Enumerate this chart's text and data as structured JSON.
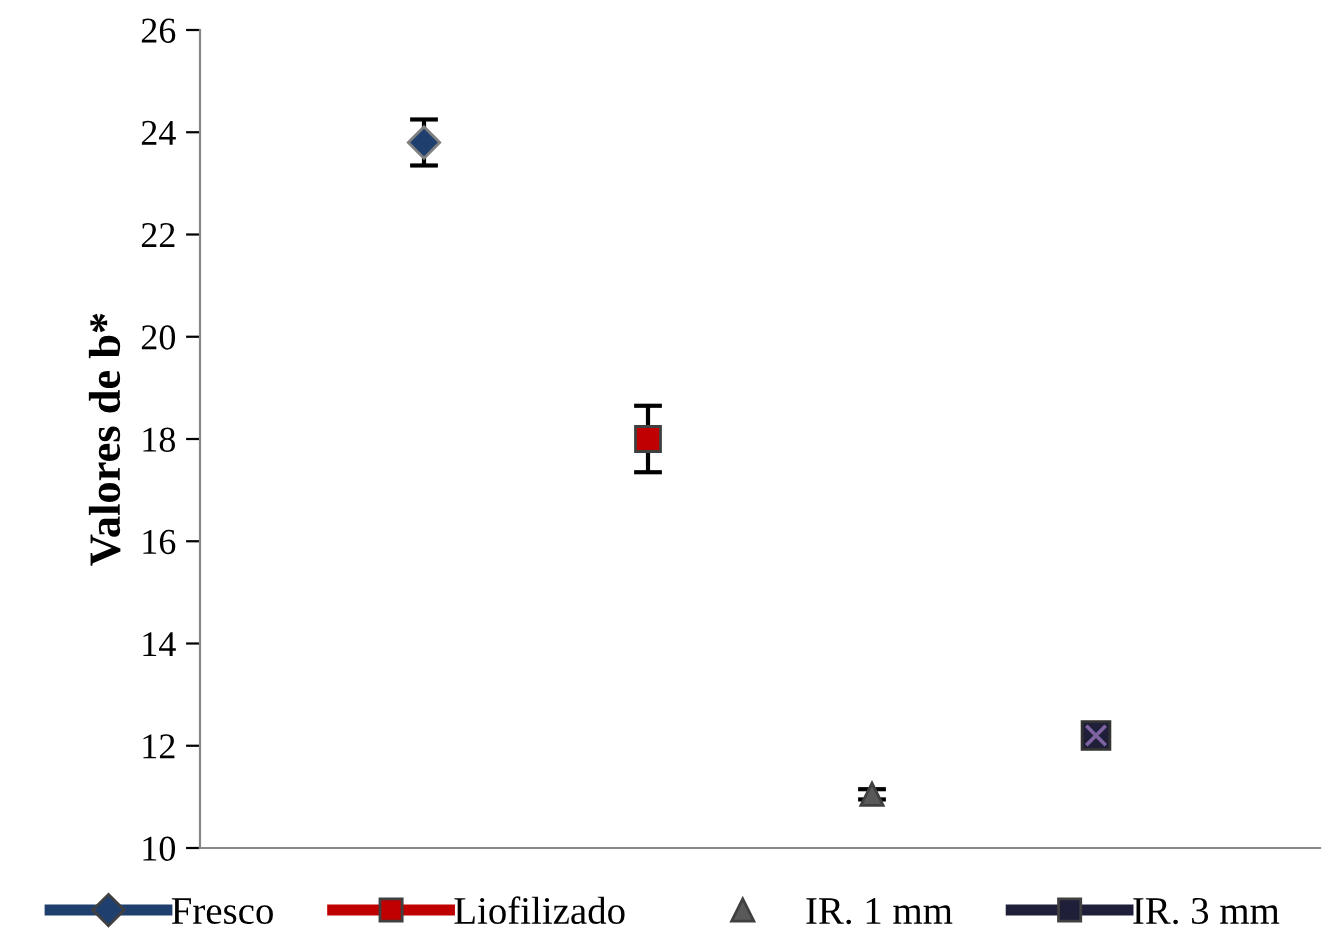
{
  "chart_data": {
    "type": "scatter",
    "ylabel": "Valores de b*",
    "categories": [
      null,
      null,
      null,
      null
    ],
    "series": [
      {
        "name": "Fresco",
        "color": "#1f3f6e",
        "marker": "diamond",
        "values": [
          23.8,
          null,
          null,
          null
        ],
        "errors": [
          0.45,
          null,
          null,
          null
        ]
      },
      {
        "name": "Liofilizado",
        "color": "#c00000",
        "marker": "square",
        "values": [
          null,
          18.0,
          null,
          null
        ],
        "errors": [
          null,
          0.65,
          null,
          null
        ]
      },
      {
        "name": "IR. 1 mm",
        "color": "#595959",
        "marker": "triangle",
        "values": [
          null,
          null,
          11.05,
          null
        ],
        "errors": [
          null,
          null,
          0.1,
          null
        ]
      },
      {
        "name": "IR. 3 mm",
        "color": "#1f1f3a",
        "marker": "square",
        "values": [
          null,
          null,
          null,
          12.2
        ]
      }
    ],
    "ylim": [
      10,
      26
    ],
    "yticks": [
      10,
      12,
      14,
      16,
      18,
      20,
      22,
      24,
      26
    ],
    "tick_labels": "y",
    "grid": false,
    "legend": "bottom"
  }
}
